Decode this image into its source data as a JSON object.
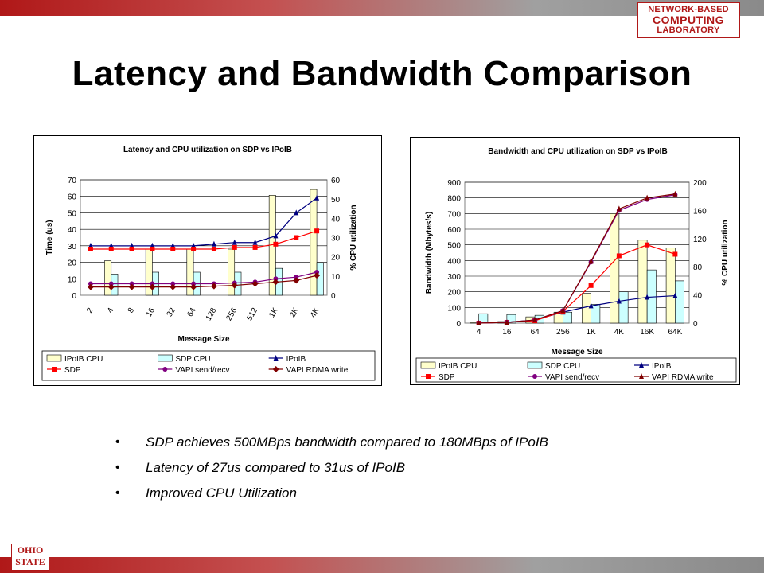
{
  "header": {
    "logo_line1": "NETWORK-BASED",
    "logo_line2": "COMPUTING",
    "logo_line3": "LABORATORY",
    "title": "Latency and Bandwidth Comparison"
  },
  "footer": {
    "logo_line1": "OHIO",
    "logo_line2": "STATE"
  },
  "colors": {
    "brand_red": "#b01818",
    "ipoib_cpu": "#ffffcc",
    "sdp_cpu": "#ccffff",
    "ipoib": "#000080",
    "sdp": "#ff0000",
    "vapi_sendrecv": "#800080",
    "vapi_rdma": "#800000"
  },
  "bullets": [
    "SDP achieves 500MBps bandwidth compared to 180MBps of IPoIB",
    "Latency of 27us compared to 31us of IPoIB",
    "Improved CPU Utilization"
  ],
  "chart_data": [
    {
      "type": "bar+line",
      "title": "Latency and CPU utilization on SDP vs IPoIB",
      "xlabel": "Message Size",
      "ylabel": "Time (us)",
      "y2label": "% CPU utilization",
      "categories": [
        "2",
        "4",
        "8",
        "16",
        "32",
        "64",
        "128",
        "256",
        "512",
        "1K",
        "2K",
        "4K"
      ],
      "ylim": [
        0,
        70
      ],
      "yticks": [
        "0",
        "10",
        "20",
        "30",
        "40",
        "50",
        "60",
        "70"
      ],
      "y2lim": [
        0,
        60
      ],
      "y2ticks": [
        "0",
        "10",
        "20",
        "30",
        "40",
        "50",
        "60"
      ],
      "legend_position": "bottom",
      "series": [
        {
          "name": "IPoIB CPU",
          "kind": "bar",
          "axis": "y2",
          "color": "#ffffcc",
          "values": [
            null,
            18,
            null,
            24,
            null,
            24,
            null,
            24,
            null,
            52,
            null,
            55
          ]
        },
        {
          "name": "SDP CPU",
          "kind": "bar",
          "axis": "y2",
          "color": "#ccffff",
          "values": [
            null,
            11,
            null,
            12,
            null,
            12,
            null,
            12,
            null,
            14,
            null,
            17
          ]
        },
        {
          "name": "IPoIB",
          "kind": "line",
          "axis": "y",
          "color": "#000080",
          "marker": "triangle",
          "values": [
            30,
            30,
            30,
            30,
            30,
            30,
            31,
            32,
            32,
            36,
            50,
            59
          ]
        },
        {
          "name": "SDP",
          "kind": "line",
          "axis": "y",
          "color": "#ff0000",
          "marker": "square",
          "values": [
            28,
            28,
            28,
            28,
            28,
            28,
            28,
            29,
            29,
            31,
            35,
            39
          ]
        },
        {
          "name": "VAPI send/recv",
          "kind": "line",
          "axis": "y",
          "color": "#800080",
          "marker": "circle",
          "values": [
            7,
            7,
            7,
            7,
            7,
            7,
            7,
            7.5,
            8,
            10,
            11,
            14
          ]
        },
        {
          "name": "VAPI RDMA write",
          "kind": "line",
          "axis": "y",
          "color": "#800000",
          "marker": "diamond",
          "values": [
            5,
            5,
            5,
            5,
            5,
            5,
            5.5,
            6,
            7,
            8,
            9,
            12
          ]
        }
      ]
    },
    {
      "type": "bar+line",
      "title": "Bandwidth and CPU utilization on SDP vs IPoIB",
      "xlabel": "Message Size",
      "ylabel": "Bandwidth (Mbytes/s)",
      "y2label": "% CPU utilization",
      "categories": [
        "4",
        "16",
        "64",
        "256",
        "1K",
        "4K",
        "16K",
        "64K"
      ],
      "ylim": [
        0,
        900
      ],
      "yticks": [
        "0",
        "100",
        "200",
        "300",
        "400",
        "500",
        "600",
        "700",
        "800",
        "900"
      ],
      "y2lim": [
        0,
        200
      ],
      "y2ticks": [
        "0",
        "40",
        "80",
        "120",
        "160",
        "200"
      ],
      "legend_position": "bottom",
      "series": [
        {
          "name": "IPoIB CPU",
          "kind": "bar",
          "axis": "y",
          "color": "#ffffcc",
          "values": [
            5,
            10,
            40,
            70,
            190,
            700,
            530,
            480
          ]
        },
        {
          "name": "SDP CPU",
          "kind": "bar",
          "axis": "y",
          "color": "#ccffff",
          "values": [
            60,
            55,
            50,
            70,
            120,
            200,
            340,
            270
          ]
        },
        {
          "name": "IPoIB",
          "kind": "line",
          "axis": "y",
          "color": "#000080",
          "marker": "triangle",
          "values": [
            0,
            5,
            20,
            70,
            110,
            140,
            165,
            175
          ]
        },
        {
          "name": "SDP",
          "kind": "line",
          "axis": "y",
          "color": "#ff0000",
          "marker": "square",
          "values": [
            0,
            5,
            15,
            75,
            240,
            430,
            500,
            440
          ]
        },
        {
          "name": "VAPI send/recv",
          "kind": "line",
          "axis": "y",
          "color": "#800080",
          "marker": "circle",
          "values": [
            0,
            5,
            20,
            80,
            390,
            720,
            790,
            820
          ]
        },
        {
          "name": "VAPI RDMA write",
          "kind": "line",
          "axis": "y",
          "color": "#800000",
          "marker": "triangle",
          "values": [
            0,
            5,
            20,
            80,
            395,
            730,
            800,
            825
          ]
        }
      ]
    }
  ]
}
